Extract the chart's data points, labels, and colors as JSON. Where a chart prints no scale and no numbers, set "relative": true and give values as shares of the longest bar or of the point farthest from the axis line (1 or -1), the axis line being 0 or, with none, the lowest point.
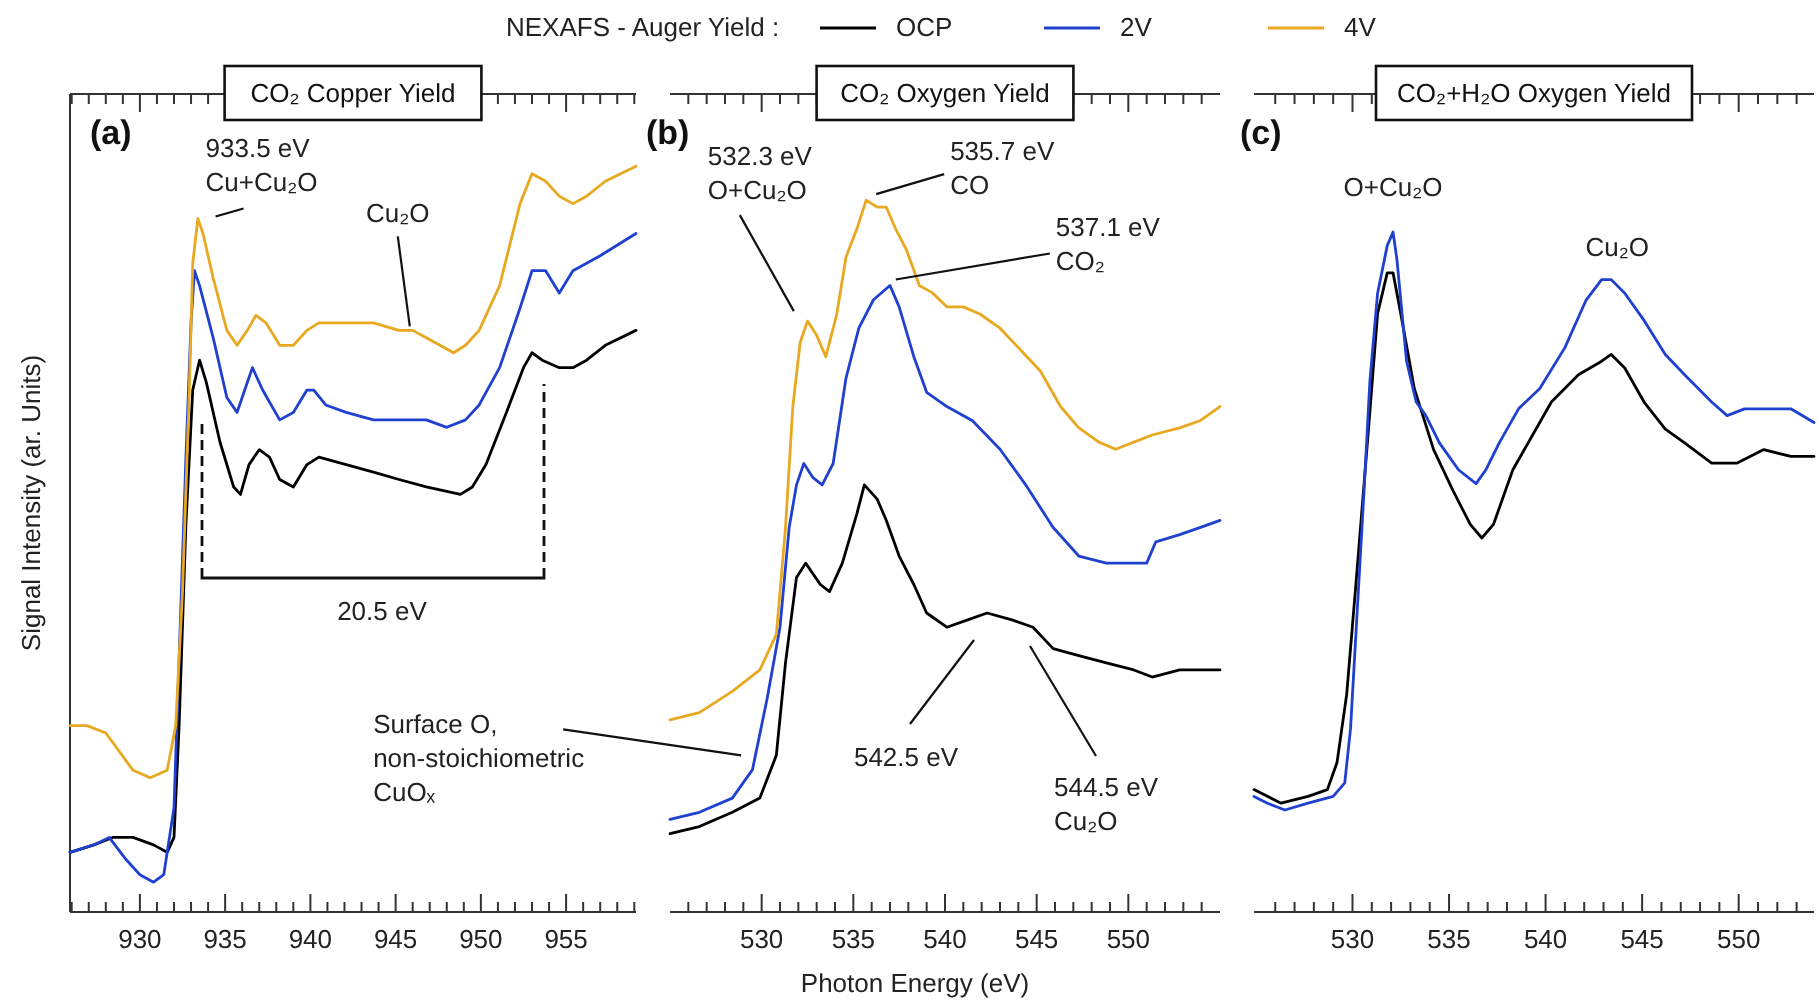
{
  "chart_data": [
    {
      "type": "line",
      "relative": true,
      "title": "CO₂ Copper Yield",
      "ylabel": "Signal Intensity (ar. Units)",
      "xlim": [
        925.9,
        959.1
      ],
      "xticks": [
        {
          "value": 926,
          "label": null
        },
        {
          "value": 927,
          "label": null
        },
        {
          "value": 928,
          "label": null
        },
        {
          "value": 929,
          "label": null
        },
        930,
        {
          "value": 931,
          "label": null
        },
        {
          "value": 932,
          "label": null
        },
        {
          "value": 933,
          "label": null
        },
        {
          "value": 934,
          "label": null
        },
        935,
        {
          "value": 936,
          "label": null
        },
        {
          "value": 937,
          "label": null
        },
        {
          "value": 938,
          "label": null
        },
        {
          "value": 939,
          "label": null
        },
        940,
        {
          "value": 941,
          "label": null
        },
        {
          "value": 942,
          "label": null
        },
        {
          "value": 943,
          "label": null
        },
        {
          "value": 944,
          "label": null
        },
        945,
        {
          "value": 946,
          "label": null
        },
        {
          "value": 947,
          "label": null
        },
        {
          "value": 948,
          "label": null
        },
        {
          "value": 949,
          "label": null
        },
        950,
        {
          "value": 951,
          "label": null
        },
        {
          "value": 952,
          "label": null
        },
        {
          "value": 953,
          "label": null
        },
        {
          "value": 954,
          "label": null
        },
        955,
        {
          "value": 956,
          "label": null
        },
        {
          "value": 957,
          "label": null
        },
        {
          "value": 958,
          "label": null
        },
        {
          "value": 959,
          "label": null
        }
      ],
      "line_style": "solid",
      "series": [
        {
          "color": "#000000",
          "x": [
            925.9,
            927.3,
            928.4,
            929.6,
            930.8,
            931.6,
            932.0,
            932.3,
            932.7,
            933.1,
            933.5,
            933.9,
            934.7,
            935.5,
            935.9,
            936.4,
            937.0,
            937.6,
            938.2,
            939.0,
            939.8,
            940.5,
            942.1,
            943.7,
            945.2,
            946.8,
            948.8,
            949.5,
            950.3,
            951.5,
            952.5,
            953.0,
            953.6,
            954.6,
            955.4,
            956.2,
            957.3,
            959.1
          ],
          "values": [
            0.08,
            0.09,
            0.1,
            0.1,
            0.09,
            0.08,
            0.1,
            0.25,
            0.52,
            0.7,
            0.74,
            0.71,
            0.63,
            0.57,
            0.56,
            0.6,
            0.62,
            0.61,
            0.58,
            0.57,
            0.6,
            0.61,
            0.6,
            0.59,
            0.58,
            0.57,
            0.56,
            0.57,
            0.6,
            0.67,
            0.73,
            0.75,
            0.74,
            0.73,
            0.73,
            0.74,
            0.76,
            0.78
          ]
        },
        {
          "color": "#2040d0",
          "x": [
            925.9,
            927.3,
            928.2,
            929.2,
            930.0,
            930.8,
            931.4,
            932.0,
            932.3,
            932.7,
            933.0,
            933.2,
            933.5,
            934.3,
            935.1,
            935.7,
            936.3,
            936.6,
            937.2,
            938.2,
            939.0,
            939.8,
            940.2,
            940.9,
            942.1,
            943.7,
            945.2,
            946.8,
            948.0,
            949.1,
            949.9,
            951.1,
            952.3,
            953.0,
            953.8,
            954.6,
            955.4,
            957.0,
            959.1
          ],
          "values": [
            0.08,
            0.09,
            0.1,
            0.07,
            0.05,
            0.04,
            0.05,
            0.14,
            0.34,
            0.61,
            0.79,
            0.86,
            0.84,
            0.77,
            0.69,
            0.67,
            0.71,
            0.73,
            0.7,
            0.66,
            0.67,
            0.7,
            0.7,
            0.68,
            0.67,
            0.66,
            0.66,
            0.66,
            0.65,
            0.66,
            0.68,
            0.73,
            0.81,
            0.86,
            0.86,
            0.83,
            0.86,
            0.88,
            0.91
          ]
        },
        {
          "color": "#e8a820",
          "x": [
            925.9,
            926.9,
            928.0,
            929.6,
            930.6,
            931.6,
            932.1,
            932.5,
            932.9,
            933.1,
            933.4,
            933.7,
            934.3,
            935.1,
            935.7,
            936.3,
            936.8,
            937.4,
            938.2,
            939.0,
            939.8,
            940.5,
            942.1,
            943.7,
            945.2,
            946.0,
            946.8,
            948.4,
            949.1,
            949.9,
            951.1,
            952.3,
            953.0,
            953.8,
            954.6,
            955.4,
            956.2,
            957.3,
            959.1
          ],
          "values": [
            0.25,
            0.25,
            0.24,
            0.19,
            0.18,
            0.19,
            0.25,
            0.43,
            0.7,
            0.87,
            0.93,
            0.91,
            0.85,
            0.78,
            0.76,
            0.78,
            0.8,
            0.79,
            0.76,
            0.76,
            0.78,
            0.79,
            0.79,
            0.79,
            0.78,
            0.78,
            0.77,
            0.75,
            0.76,
            0.78,
            0.84,
            0.95,
            0.99,
            0.98,
            0.96,
            0.95,
            0.96,
            0.98,
            1.0
          ]
        }
      ],
      "annotations": [
        "(a)",
        {
          "text": "933.5 eV\nCu+Cu₂O",
          "x": 933.5,
          "y": 0.93
        },
        {
          "text": "Cu₂O",
          "x": 946.3,
          "y": 0.78
        },
        "20.5 eV"
      ]
    },
    {
      "type": "line",
      "relative": true,
      "title": "CO₂ Oxygen Yield",
      "xlabel": "Photon Energy (eV)",
      "legend": "top",
      "legend_title": "NEXAFS - Auger Yield :",
      "xlim": [
        525,
        555
      ],
      "xticks": [
        {
          "value": 526,
          "label": null
        },
        {
          "value": 527,
          "label": null
        },
        {
          "value": 528,
          "label": null
        },
        {
          "value": 529,
          "label": null
        },
        530,
        {
          "value": 531,
          "label": null
        },
        {
          "value": 532,
          "label": null
        },
        {
          "value": 533,
          "label": null
        },
        {
          "value": 534,
          "label": null
        },
        535,
        {
          "value": 536,
          "label": null
        },
        {
          "value": 537,
          "label": null
        },
        {
          "value": 538,
          "label": null
        },
        {
          "value": 539,
          "label": null
        },
        540,
        {
          "value": 541,
          "label": null
        },
        {
          "value": 542,
          "label": null
        },
        {
          "value": 543,
          "label": null
        },
        {
          "value": 544,
          "label": null
        },
        545,
        {
          "value": 546,
          "label": null
        },
        {
          "value": 547,
          "label": null
        },
        {
          "value": 548,
          "label": null
        },
        {
          "value": 549,
          "label": null
        },
        550,
        {
          "value": 551,
          "label": null
        },
        {
          "value": 552,
          "label": null
        },
        {
          "value": 553,
          "label": null
        },
        {
          "value": 554,
          "label": null
        }
      ],
      "line_style": "solid",
      "series": [
        {
          "name": "OCP",
          "color": "#000000",
          "x": [
            525.0,
            526.6,
            528.4,
            529.9,
            530.8,
            531.3,
            531.9,
            532.4,
            533.2,
            533.7,
            534.4,
            535.2,
            535.6,
            536.3,
            536.8,
            537.5,
            538.3,
            539.0,
            540.1,
            541.2,
            542.3,
            543.7,
            544.8,
            545.9,
            547.3,
            548.8,
            550.3,
            551.3,
            552.8,
            555.0
          ],
          "values": [
            0.11,
            0.12,
            0.14,
            0.16,
            0.22,
            0.35,
            0.47,
            0.49,
            0.46,
            0.45,
            0.49,
            0.56,
            0.6,
            0.58,
            0.55,
            0.5,
            0.46,
            0.42,
            0.4,
            0.41,
            0.42,
            0.41,
            0.4,
            0.37,
            0.36,
            0.35,
            0.34,
            0.33,
            0.34,
            0.34
          ]
        },
        {
          "name": "2V",
          "color": "#2040d0",
          "x": [
            525.0,
            526.6,
            528.4,
            529.5,
            530.3,
            531.0,
            531.5,
            531.9,
            532.3,
            532.8,
            533.3,
            533.9,
            534.6,
            535.3,
            536.1,
            537.0,
            537.5,
            538.3,
            539.0,
            540.1,
            541.5,
            543.0,
            544.4,
            545.9,
            547.3,
            548.8,
            549.9,
            551.0,
            551.5,
            552.8,
            553.9,
            555.0
          ],
          "values": [
            0.13,
            0.14,
            0.16,
            0.2,
            0.3,
            0.4,
            0.54,
            0.6,
            0.63,
            0.61,
            0.6,
            0.63,
            0.75,
            0.82,
            0.86,
            0.88,
            0.85,
            0.78,
            0.73,
            0.71,
            0.69,
            0.65,
            0.6,
            0.54,
            0.5,
            0.49,
            0.49,
            0.49,
            0.52,
            0.53,
            0.54,
            0.55
          ]
        },
        {
          "name": "4V",
          "color": "#e8a820",
          "x": [
            525.0,
            526.6,
            528.4,
            529.9,
            530.8,
            531.3,
            531.7,
            532.1,
            532.5,
            533.0,
            533.5,
            534.1,
            534.6,
            535.2,
            535.7,
            536.3,
            536.8,
            537.3,
            537.9,
            538.6,
            539.3,
            540.1,
            541.0,
            541.9,
            543.0,
            544.1,
            545.2,
            546.3,
            547.3,
            548.4,
            549.3,
            550.3,
            551.3,
            552.8,
            553.9,
            555.0
          ],
          "values": [
            0.27,
            0.28,
            0.31,
            0.34,
            0.39,
            0.54,
            0.71,
            0.8,
            0.83,
            0.81,
            0.78,
            0.84,
            0.92,
            0.96,
            1.0,
            0.99,
            0.99,
            0.96,
            0.93,
            0.88,
            0.87,
            0.85,
            0.85,
            0.84,
            0.82,
            0.79,
            0.76,
            0.71,
            0.68,
            0.66,
            0.65,
            0.66,
            0.67,
            0.68,
            0.69,
            0.71
          ]
        }
      ],
      "annotations": [
        "(b)",
        {
          "text": "532.3 eV\nO+Cu₂O",
          "x": 532.3,
          "y": 0.83
        },
        {
          "text": "535.7 eV\nCO",
          "x": 535.7,
          "y": 1.0
        },
        {
          "text": "537.1 eV\nCO₂",
          "x": 537.1,
          "y": 0.88
        },
        "542.5 eV",
        "544.5 eV\nCu₂O",
        {
          "text": "Surface O,\nnon-stoichiometric\nCuOₓ",
          "x": 529.1,
          "y": 0.22
        }
      ]
    },
    {
      "type": "line",
      "relative": true,
      "title": "CO₂+H₂O Oxygen Yield",
      "xlim": [
        524.9,
        553.9
      ],
      "xticks": [
        {
          "value": 526,
          "label": null
        },
        {
          "value": 527,
          "label": null
        },
        {
          "value": 528,
          "label": null
        },
        {
          "value": 529,
          "label": null
        },
        530,
        {
          "value": 531,
          "label": null
        },
        {
          "value": 532,
          "label": null
        },
        {
          "value": 533,
          "label": null
        },
        {
          "value": 534,
          "label": null
        },
        535,
        {
          "value": 536,
          "label": null
        },
        {
          "value": 537,
          "label": null
        },
        {
          "value": 538,
          "label": null
        },
        {
          "value": 539,
          "label": null
        },
        540,
        {
          "value": 541,
          "label": null
        },
        {
          "value": 542,
          "label": null
        },
        {
          "value": 543,
          "label": null
        },
        {
          "value": 544,
          "label": null
        },
        545,
        {
          "value": 546,
          "label": null
        },
        {
          "value": 547,
          "label": null
        },
        {
          "value": 548,
          "label": null
        },
        {
          "value": 549,
          "label": null
        },
        550,
        {
          "value": 551,
          "label": null
        },
        {
          "value": 552,
          "label": null
        },
        {
          "value": 553,
          "label": null
        }
      ],
      "line_style": "solid",
      "series": [
        {
          "color": "#000000",
          "x": [
            524.9,
            526.3,
            527.7,
            528.7,
            529.2,
            529.7,
            530.2,
            530.8,
            531.3,
            531.8,
            532.1,
            532.5,
            533.2,
            534.2,
            535.2,
            536.1,
            536.7,
            537.3,
            538.3,
            539.3,
            540.3,
            541.7,
            542.9,
            543.4,
            544.1,
            545.1,
            546.2,
            547.2,
            548.6,
            549.9,
            551.3,
            552.7,
            553.9
          ],
          "values": [
            0.18,
            0.16,
            0.17,
            0.18,
            0.22,
            0.32,
            0.49,
            0.7,
            0.88,
            0.94,
            0.94,
            0.88,
            0.77,
            0.68,
            0.62,
            0.57,
            0.55,
            0.57,
            0.65,
            0.7,
            0.75,
            0.79,
            0.81,
            0.82,
            0.8,
            0.75,
            0.71,
            0.69,
            0.66,
            0.66,
            0.68,
            0.67,
            0.67
          ]
        },
        {
          "color": "#2040d0",
          "x": [
            524.9,
            525.6,
            526.5,
            527.7,
            529.0,
            529.6,
            529.9,
            530.2,
            530.6,
            530.9,
            531.3,
            531.8,
            532.1,
            532.3,
            532.8,
            533.3,
            533.8,
            534.5,
            535.5,
            536.4,
            536.9,
            537.6,
            538.6,
            539.7,
            541.0,
            542.1,
            542.9,
            543.4,
            544.1,
            545.1,
            546.2,
            547.2,
            548.6,
            549.4,
            550.3,
            551.3,
            552.7,
            553.9
          ],
          "values": [
            0.17,
            0.16,
            0.15,
            0.16,
            0.17,
            0.19,
            0.27,
            0.42,
            0.62,
            0.78,
            0.91,
            0.98,
            1.0,
            0.96,
            0.81,
            0.75,
            0.73,
            0.69,
            0.65,
            0.63,
            0.65,
            0.69,
            0.74,
            0.77,
            0.83,
            0.9,
            0.93,
            0.93,
            0.91,
            0.87,
            0.82,
            0.79,
            0.75,
            0.73,
            0.74,
            0.74,
            0.74,
            0.72
          ]
        }
      ],
      "annotations": [
        "(c)",
        {
          "text": "O+Cu₂O",
          "x": 532.1,
          "y": 1.0
        },
        {
          "text": "Cu₂O",
          "x": 543.4,
          "y": 0.93
        }
      ]
    }
  ]
}
